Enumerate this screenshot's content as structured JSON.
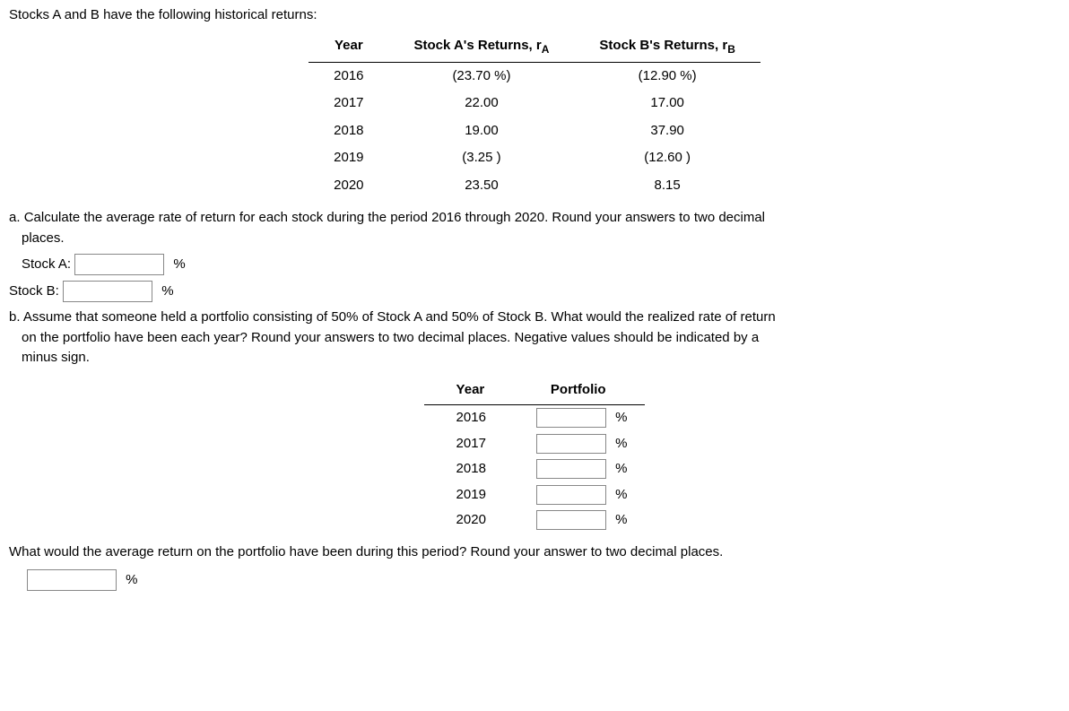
{
  "intro": "Stocks A and B have the following historical returns:",
  "table1": {
    "headers": {
      "year": "Year",
      "a_prefix": "Stock A's Returns, r",
      "a_sub": "A",
      "b_prefix": "Stock B's Returns, r",
      "b_sub": "B"
    },
    "rows": [
      {
        "year": "2016",
        "a": "(23.70 %)",
        "b": "(12.90 %)"
      },
      {
        "year": "2017",
        "a": "22.00",
        "b": "17.00"
      },
      {
        "year": "2018",
        "a": "19.00",
        "b": "37.90"
      },
      {
        "year": "2019",
        "a": "(3.25 )",
        "b": "(12.60 )"
      },
      {
        "year": "2020",
        "a": "23.50",
        "b": "8.15"
      }
    ]
  },
  "qa": {
    "letter": "a.",
    "text_line1": "Calculate the average rate of return for each stock during the period 2016 through 2020. Round your answers to two decimal",
    "text_line2": "places.",
    "stockA_label": "Stock A:",
    "stockB_label": "Stock B:",
    "pct": "%"
  },
  "qb": {
    "letter": "b.",
    "text_line1": "Assume that someone held a portfolio consisting of 50% of Stock A and 50% of Stock B. What would the realized rate of return",
    "text_line2": "on the portfolio have been each year? Round your answers to two decimal places. Negative values should be indicated by a",
    "text_line3": "minus sign."
  },
  "table2": {
    "headers": {
      "year": "Year",
      "portfolio": "Portfolio"
    },
    "rows": [
      {
        "year": "2016"
      },
      {
        "year": "2017"
      },
      {
        "year": "2018"
      },
      {
        "year": "2019"
      },
      {
        "year": "2020"
      }
    ]
  },
  "avg_q": "What would the average return on the portfolio have been during this period? Round your answer to two decimal places.",
  "pct": "%"
}
